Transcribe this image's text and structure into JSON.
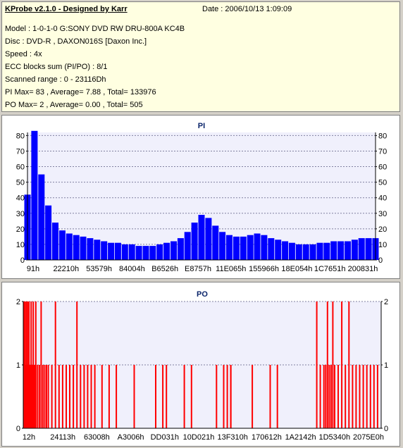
{
  "info": {
    "title": "KProbe v2.1.0 - Designed by Karr",
    "date": "Date : 2006/10/13 1:09:09",
    "model": "Model : 1-0-1-0 G:SONY    DVD RW DRU-800A  KC4B",
    "disc": "Disc : DVD-R , DAXON016S [Daxon Inc.]",
    "speed": "Speed : 4x",
    "ecc": "ECC blocks sum (PI/PO) : 8/1",
    "range": "Scanned range : 0 - 23116Dh",
    "pi": "PI Max= 83 , Average= 7.88 , Total= 133976",
    "po": "PO Max= 2 , Average= 0.00 , Total= 505"
  },
  "chart_data": [
    {
      "type": "bar",
      "title": "PI",
      "color": "#0000ff",
      "ylim": [
        0,
        82
      ],
      "yticks": [
        0,
        10,
        20,
        30,
        40,
        50,
        60,
        70,
        80
      ],
      "xticks": [
        "91h",
        "22210h",
        "53579h",
        "84004h",
        "B6526h",
        "E8757h",
        "11E065h",
        "155966h",
        "18E054h",
        "1C7651h",
        "200831h"
      ],
      "grid": true,
      "x": [
        0.0,
        0.02,
        0.04,
        0.06,
        0.08,
        0.1,
        0.12,
        0.14,
        0.16,
        0.18,
        0.2,
        0.22,
        0.24,
        0.26,
        0.28,
        0.3,
        0.32,
        0.34,
        0.36,
        0.38,
        0.4,
        0.42,
        0.44,
        0.46,
        0.48,
        0.5,
        0.52,
        0.54,
        0.56,
        0.58,
        0.6,
        0.62,
        0.64,
        0.66,
        0.68,
        0.7,
        0.72,
        0.74,
        0.76,
        0.78,
        0.8,
        0.82,
        0.84,
        0.86,
        0.88,
        0.9,
        0.92,
        0.94,
        0.96,
        0.98,
        1.0
      ],
      "values": [
        42,
        83,
        55,
        35,
        24,
        19,
        17,
        16,
        15,
        14,
        13,
        12,
        11,
        11,
        10,
        10,
        9,
        9,
        9,
        10,
        11,
        12,
        14,
        18,
        24,
        29,
        27,
        22,
        18,
        16,
        15,
        15,
        16,
        17,
        16,
        14,
        13,
        12,
        11,
        10,
        10,
        10,
        11,
        11,
        12,
        12,
        12,
        13,
        14,
        14,
        14
      ]
    },
    {
      "type": "bar",
      "title": "PO",
      "color": "#ff0000",
      "ylim": [
        0,
        2
      ],
      "yticks": [
        0,
        1,
        2
      ],
      "xticks": [
        "12h",
        "24113h",
        "63008h",
        "A3006h",
        "DD031h",
        "10D021h",
        "13F310h",
        "170612h",
        "1A2142h",
        "1D5340h",
        "2075E0h"
      ],
      "grid": true,
      "x": [
        0.002,
        0.004,
        0.006,
        0.008,
        0.01,
        0.012,
        0.014,
        0.016,
        0.018,
        0.02,
        0.022,
        0.024,
        0.026,
        0.028,
        0.03,
        0.032,
        0.035,
        0.04,
        0.045,
        0.05,
        0.055,
        0.06,
        0.065,
        0.07,
        0.08,
        0.09,
        0.1,
        0.11,
        0.12,
        0.13,
        0.14,
        0.15,
        0.16,
        0.17,
        0.18,
        0.19,
        0.2,
        0.22,
        0.24,
        0.26,
        0.31,
        0.37,
        0.39,
        0.4,
        0.45,
        0.47,
        0.54,
        0.56,
        0.57,
        0.58,
        0.58,
        0.64,
        0.69,
        0.71,
        0.82,
        0.83,
        0.84,
        0.845,
        0.85,
        0.855,
        0.86,
        0.865,
        0.87,
        0.88,
        0.89,
        0.9,
        0.91,
        0.92,
        0.93,
        0.94,
        0.95,
        0.96,
        0.97,
        0.98,
        0.99
      ],
      "values": [
        2,
        2,
        1,
        2,
        1,
        2,
        1,
        2,
        1,
        1,
        2,
        1,
        1,
        2,
        1,
        1,
        2,
        1,
        1,
        2,
        1,
        1,
        1,
        1,
        1,
        2,
        1,
        1,
        1,
        1,
        1,
        2,
        1,
        1,
        1,
        1,
        1,
        1,
        1,
        1,
        1,
        1,
        1,
        1,
        1,
        1,
        1,
        1,
        1,
        1,
        1,
        1,
        1,
        1,
        2,
        1,
        1,
        1,
        2,
        1,
        1,
        2,
        1,
        1,
        2,
        1,
        2,
        1,
        1,
        1,
        1,
        1,
        1,
        1,
        1
      ]
    }
  ]
}
